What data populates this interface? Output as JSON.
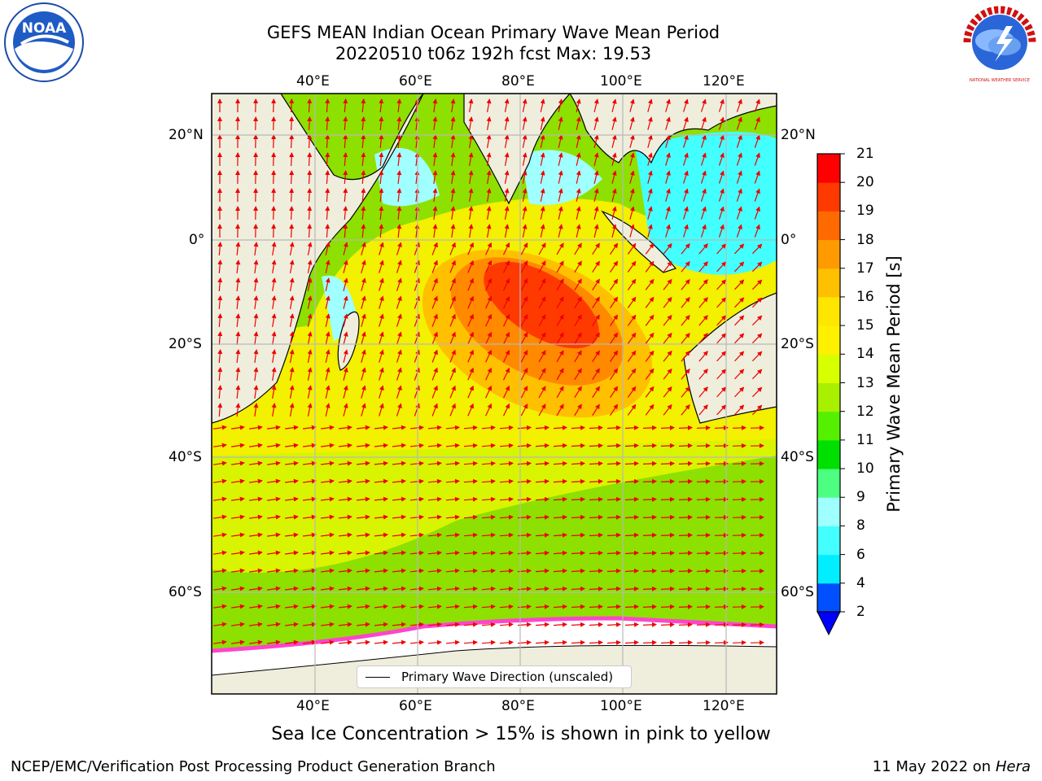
{
  "title": {
    "line1": "GEFS MEAN Indian Ocean Primary Wave Mean Period",
    "line2": "20220510 t06z 192h fcst   Max: 19.53"
  },
  "logos": {
    "left": "NOAA",
    "right": "NATIONAL WEATHER SERVICE"
  },
  "map": {
    "top_lon_labels": [
      "40°E",
      "60°E",
      "80°E",
      "100°E",
      "120°E"
    ],
    "bottom_lon_labels": [
      "40°E",
      "60°E",
      "80°E",
      "100°E",
      "120°E"
    ],
    "left_lat_labels": [
      "20°N",
      "0°",
      "20°S",
      "40°S",
      "60°S"
    ],
    "right_lat_labels": [
      "20°N",
      "0°",
      "20°S",
      "40°S",
      "60°S"
    ],
    "legend_label": "Primary Wave Direction (unscaled)",
    "colors": {
      "land": "#efeedd",
      "ocean_yellow": "#f3f000",
      "ocean_green": "#8de000",
      "max_red": "#ff2a00",
      "arrow": "#ee0000"
    }
  },
  "colorbar": {
    "title": "Primary Wave Mean Period [s]",
    "ticks": [
      "2",
      "4",
      "6",
      "8",
      "9",
      "10",
      "11",
      "12",
      "13",
      "14",
      "15",
      "16",
      "17",
      "18",
      "19",
      "20",
      "21"
    ],
    "colors": [
      "#0050ff",
      "#00eeff",
      "#44ffff",
      "#a0ffff",
      "#4dff80",
      "#00e000",
      "#55f000",
      "#a8f000",
      "#d8ff00",
      "#fff000",
      "#ffe600",
      "#ffc000",
      "#ff9a00",
      "#ff6a00",
      "#ff3a00",
      "#ff0000"
    ]
  },
  "subtitle": "Sea Ice Concentration > 15% is shown in pink to yellow",
  "footer": {
    "credit": "NCEP/EMC/Verification Post Processing Product Generation Branch",
    "date": "11 May 2022 on",
    "machine": "Hera"
  }
}
